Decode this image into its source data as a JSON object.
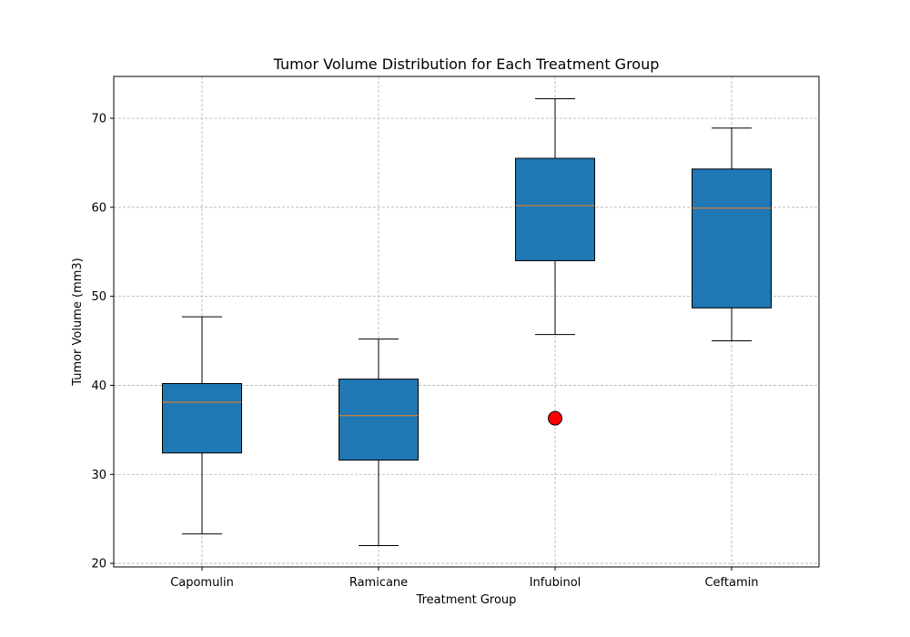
{
  "chart_data": {
    "type": "box",
    "title": "Tumor Volume Distribution for Each Treatment Group",
    "xlabel": "Treatment Group",
    "ylabel": "Tumor Volume (mm3)",
    "ylim": [
      19.6,
      74.7
    ],
    "yticks": [
      20,
      30,
      40,
      50,
      60,
      70
    ],
    "grid": true,
    "categories": [
      "Capomulin",
      "Ramicane",
      "Infubinol",
      "Ceftamin"
    ],
    "boxes": [
      {
        "whisker_low": 23.3,
        "q1": 32.4,
        "median": 38.1,
        "q3": 40.2,
        "whisker_high": 47.7,
        "outliers": []
      },
      {
        "whisker_low": 22.0,
        "q1": 31.6,
        "median": 36.6,
        "q3": 40.7,
        "whisker_high": 45.2,
        "outliers": []
      },
      {
        "whisker_low": 45.7,
        "q1": 54.0,
        "median": 60.2,
        "q3": 65.5,
        "whisker_high": 72.2,
        "outliers": [
          36.3
        ]
      },
      {
        "whisker_low": 45.0,
        "q1": 48.7,
        "median": 59.9,
        "q3": 64.3,
        "whisker_high": 68.9,
        "outliers": []
      }
    ],
    "colors": {
      "box_fill": "#1f77b4",
      "median_line": "#ff7f0e",
      "outlier_fill": "#ff0000",
      "grid": "#b0b0b0"
    }
  }
}
